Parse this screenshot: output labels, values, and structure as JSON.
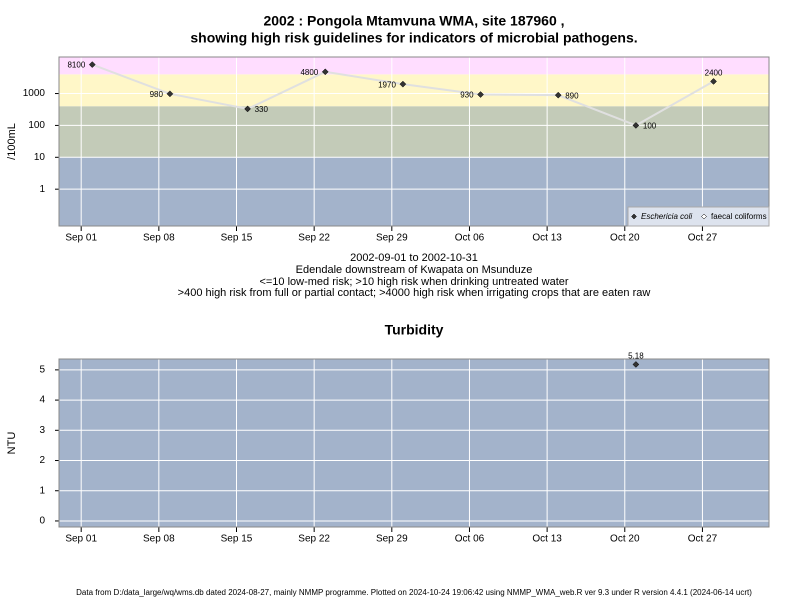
{
  "chart_data": [
    {
      "type": "line",
      "title": "2002 : Pongola Mtamvuna WMA, site 187960 ,",
      "subtitle": "showing high risk guidelines for indicators of microbial pathogens.",
      "ylabel": "/100mL",
      "log_y": true,
      "grid": true,
      "x": [
        "2002-09-02",
        "2002-09-09",
        "2002-09-16",
        "2002-09-23",
        "2002-09-30",
        "2002-10-07",
        "2002-10-14",
        "2002-10-21",
        "2002-10-28"
      ],
      "series": [
        {
          "name": "Eschericia coli",
          "color": "#333333",
          "line_color": "#e0e0e0",
          "values": [
            8100,
            980,
            330,
            4800,
            1970,
            930,
            890,
            100,
            2400
          ]
        },
        {
          "name": "faecal coliforms",
          "color": "#ffffff",
          "line_color": "#e0e0e0",
          "values": [
            null,
            null,
            null,
            null,
            null,
            null,
            null,
            null,
            null
          ]
        }
      ],
      "xlim": [
        "2002-08-30",
        "2002-11-02"
      ],
      "xticks": [
        {
          "value": "2002-09-01",
          "label": "Sep 01"
        },
        {
          "value": "2002-09-08",
          "label": "Sep 08"
        },
        {
          "value": "2002-09-15",
          "label": "Sep 15"
        },
        {
          "value": "2002-09-22",
          "label": "Sep 22"
        },
        {
          "value": "2002-09-29",
          "label": "Sep 29"
        },
        {
          "value": "2002-10-06",
          "label": "Oct 06"
        },
        {
          "value": "2002-10-13",
          "label": "Oct 13"
        },
        {
          "value": "2002-10-20",
          "label": "Oct 20"
        },
        {
          "value": "2002-10-27",
          "label": "Oct 27"
        }
      ],
      "ylim": [
        0.07,
        14000
      ],
      "yticks": [
        1,
        10,
        100,
        1000
      ],
      "band_edges": [
        10,
        400,
        4000
      ],
      "band_colors": [
        "#a3b3cb",
        "#c3cbb8",
        "#fff7c8",
        "#ffddff"
      ],
      "legend": "bottom-right",
      "notes": [
        "2002-09-01 to 2002-10-31",
        "Edendale downstream of Kwapata on Msunduze",
        "<=10 low-med risk; >10 high risk when drinking untreated water",
        ">400 high risk from full or partial contact; >4000 high risk when irrigating crops that are eaten raw"
      ]
    },
    {
      "type": "line",
      "title": "Turbidity",
      "ylabel": "NTU",
      "log_y": false,
      "grid": true,
      "x": [
        "2002-10-21"
      ],
      "series": [
        {
          "name": "Turbidity",
          "color": "#333333",
          "line_color": "#e0e0e0",
          "values": [
            5.18
          ]
        }
      ],
      "xlim": [
        "2002-08-30",
        "2002-11-02"
      ],
      "xticks": [
        {
          "value": "2002-09-01",
          "label": "Sep 01"
        },
        {
          "value": "2002-09-08",
          "label": "Sep 08"
        },
        {
          "value": "2002-09-15",
          "label": "Sep 15"
        },
        {
          "value": "2002-09-22",
          "label": "Sep 22"
        },
        {
          "value": "2002-09-29",
          "label": "Sep 29"
        },
        {
          "value": "2002-10-06",
          "label": "Oct 06"
        },
        {
          "value": "2002-10-13",
          "label": "Oct 13"
        },
        {
          "value": "2002-10-20",
          "label": "Oct 20"
        },
        {
          "value": "2002-10-27",
          "label": "Oct 27"
        }
      ],
      "ylim": [
        -0.2,
        5.36
      ],
      "yticks": [
        0,
        1,
        2,
        3,
        4,
        5
      ],
      "band_colors": [
        "#a3b3cb"
      ]
    }
  ],
  "footer": "Data from D:/data_large/wq/wms.db dated 2024-08-27, mainly NMMP programme. Plotted on 2024-10-24 19:06:42 using NMMP_WMA_web.R ver 9.3 under R version 4.4.1 (2024-06-14 ucrt)"
}
